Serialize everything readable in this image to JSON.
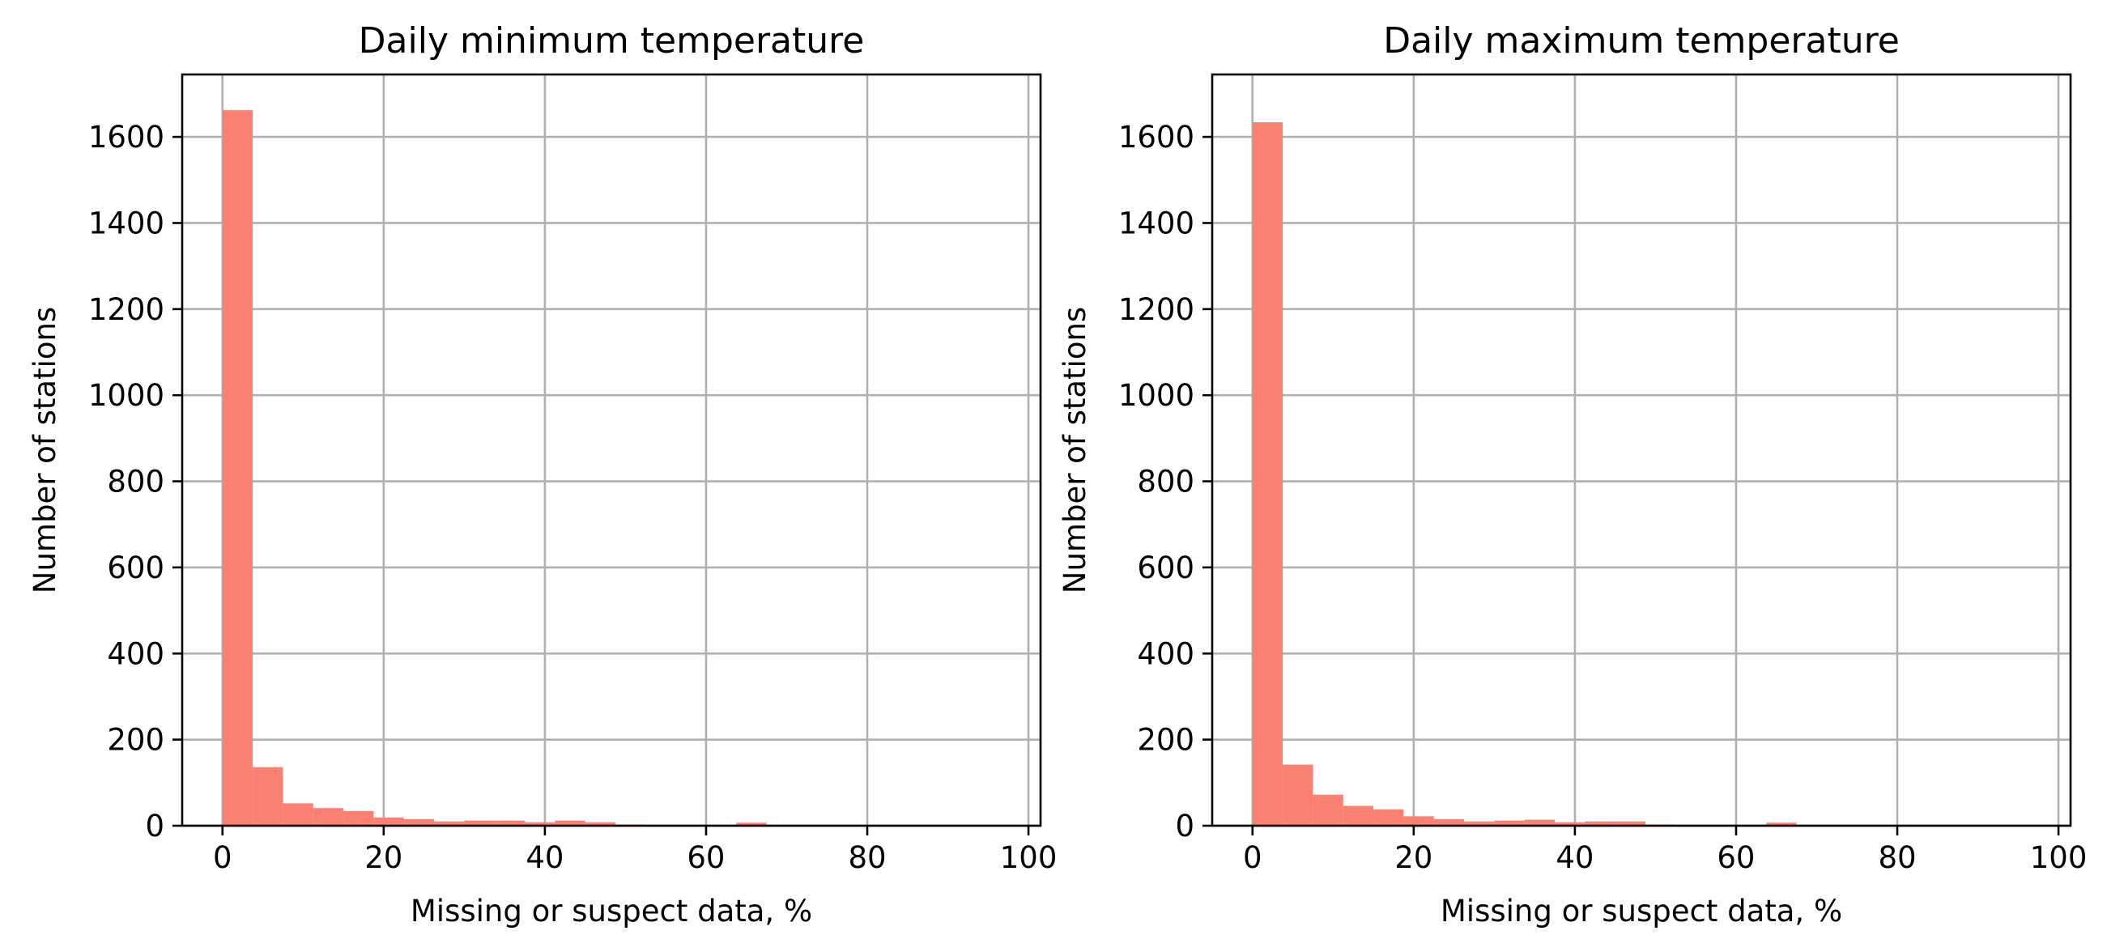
{
  "chart_data": [
    {
      "type": "bar",
      "title": "Daily minimum temperature",
      "xlabel": "Missing or suspect data, %",
      "ylabel": "Number of stations",
      "xlim": [
        -5,
        101.5
      ],
      "ylim": [
        0,
        1745
      ],
      "xticks": [
        0,
        20,
        40,
        60,
        80,
        100
      ],
      "yticks": [
        0,
        200,
        400,
        600,
        800,
        1000,
        1200,
        1400,
        1600
      ],
      "grid": true,
      "bar_color": "#FA8072",
      "bin_edges": [
        0,
        3.75,
        7.5,
        11.25,
        15,
        18.75,
        22.5,
        26.25,
        30,
        33.75,
        37.5,
        41.25,
        45,
        48.75,
        52.5,
        56.25,
        60,
        63.75,
        67.5,
        71.25,
        75,
        78.75,
        82.5,
        86.25,
        90,
        93.75,
        97.5
      ],
      "values": [
        1662,
        136,
        52,
        41,
        34,
        19,
        15,
        10,
        12,
        12,
        8,
        12,
        8,
        3,
        2,
        1,
        2,
        7,
        1,
        0,
        1,
        0,
        0,
        0,
        0,
        0
      ]
    },
    {
      "type": "bar",
      "title": "Daily maximum temperature",
      "xlabel": "Missing or suspect data, %",
      "ylabel": "Number of stations",
      "xlim": [
        -5,
        101.5
      ],
      "ylim": [
        0,
        1745
      ],
      "xticks": [
        0,
        20,
        40,
        60,
        80,
        100
      ],
      "yticks": [
        0,
        200,
        400,
        600,
        800,
        1000,
        1200,
        1400,
        1600
      ],
      "grid": true,
      "bar_color": "#FA8072",
      "bin_edges": [
        0,
        3.75,
        7.5,
        11.25,
        15,
        18.75,
        22.5,
        26.25,
        30,
        33.75,
        37.5,
        41.25,
        45,
        48.75,
        52.5,
        56.25,
        60,
        63.75,
        67.5,
        71.25,
        75,
        78.75,
        82.5,
        86.25,
        90,
        93.75,
        97.5
      ],
      "values": [
        1634,
        142,
        72,
        46,
        38,
        22,
        15,
        10,
        12,
        14,
        8,
        10,
        10,
        3,
        2,
        1,
        2,
        7,
        1,
        0,
        1,
        0,
        0,
        0,
        0,
        0
      ]
    }
  ]
}
